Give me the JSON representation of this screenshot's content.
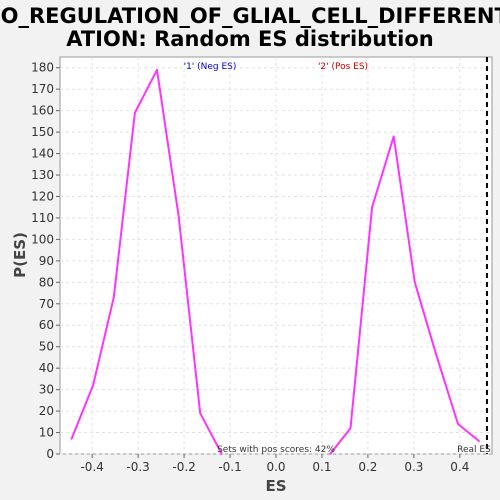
{
  "chart_data": {
    "type": "line",
    "title_lines": [
      "GO_REGULATION_OF_GLIAL_CELL_DIFFERENTI",
      "ATION: Random ES distribution"
    ],
    "xlabel": "ES",
    "ylabel": "P(ES)",
    "xlim": [
      -0.47,
      0.47
    ],
    "ylim": [
      0,
      185
    ],
    "x_ticks": [
      -0.4,
      -0.3,
      -0.2,
      -0.1,
      0.0,
      0.1,
      0.2,
      0.3,
      0.4
    ],
    "x_tick_labels": [
      "-0.4",
      "-0.3",
      "-0.2",
      "-0.1",
      "0.0",
      "0.1",
      "0.2",
      "0.3",
      "0.4"
    ],
    "y_ticks": [
      0,
      10,
      20,
      30,
      40,
      50,
      60,
      70,
      80,
      90,
      100,
      110,
      120,
      130,
      140,
      150,
      160,
      170,
      180
    ],
    "y_tick_labels": [
      "0",
      "10",
      "20",
      "30",
      "40",
      "50",
      "60",
      "70",
      "80",
      "90",
      "100",
      "110",
      "120",
      "130",
      "140",
      "150",
      "160",
      "170",
      "180"
    ],
    "grid": true,
    "series": [
      {
        "name": "'1' (Neg ES)",
        "legend_color": "#0000cc",
        "color": "#ff33ff",
        "x": [
          -0.445,
          -0.398,
          -0.353,
          -0.307,
          -0.259,
          -0.212,
          -0.165,
          -0.118
        ],
        "y": [
          7,
          32,
          73,
          159,
          179,
          111,
          19,
          0
        ]
      },
      {
        "name": "'2' (Pos ES)",
        "legend_color": "#cc0000",
        "color": "#ff33ff",
        "x": [
          0.118,
          0.162,
          0.209,
          0.256,
          0.302,
          0.349,
          0.396,
          0.442
        ],
        "y": [
          0,
          12,
          115,
          148,
          80,
          46,
          14,
          6
        ]
      }
    ],
    "real_es": {
      "x": 0.459,
      "label": "Real ES",
      "color": "#000000"
    },
    "annotation": "Sets with pos scores: 42%"
  }
}
